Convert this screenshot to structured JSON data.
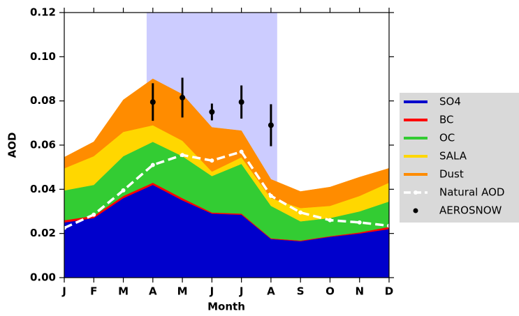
{
  "chart_data": {
    "type": "stacked_area",
    "x_label": "Month",
    "y_label": "AOD",
    "categories": [
      "J",
      "F",
      "M",
      "A",
      "M",
      "J",
      "J",
      "A",
      "S",
      "O",
      "N",
      "D"
    ],
    "ylim": [
      0,
      0.12
    ],
    "yticks": [
      {
        "value": 0,
        "label": "0.00"
      },
      {
        "value": 0.02,
        "label": "0.02"
      },
      {
        "value": 0.04,
        "label": "0.04"
      },
      {
        "value": 0.06,
        "label": "0.06"
      },
      {
        "value": 0.08,
        "label": "0.08"
      },
      {
        "value": 0.1,
        "label": "0.10"
      },
      {
        "value": 0.12,
        "label": "0.12"
      }
    ],
    "shaded_span": [
      2.79,
      7.21
    ],
    "shaded_color": "#ccccff",
    "series": [
      {
        "name": "SO4",
        "color": "#0000cc",
        "values": [
          0.025,
          0.027,
          0.036,
          0.042,
          0.035,
          0.029,
          0.0285,
          0.0175,
          0.0165,
          0.0185,
          0.02,
          0.022
        ]
      },
      {
        "name": "BC",
        "color": "#ff0000",
        "values": [
          0.001,
          0.001,
          0.001,
          0.001,
          0.001,
          0.0005,
          0.0005,
          0.0003,
          0.0003,
          0.0003,
          0.0005,
          0.001
        ]
      },
      {
        "name": "OC",
        "color": "#33cc33",
        "values": [
          0.0135,
          0.014,
          0.018,
          0.0185,
          0.019,
          0.0165,
          0.0225,
          0.0147,
          0.0087,
          0.0082,
          0.0095,
          0.0115
        ]
      },
      {
        "name": "SALA",
        "color": "#ffd700",
        "values": [
          0.01,
          0.013,
          0.011,
          0.0075,
          0.007,
          0.002,
          0.003,
          0.0035,
          0.006,
          0.0055,
          0.007,
          0.0085
        ]
      },
      {
        "name": "Dust",
        "color": "#ff8c00",
        "values": [
          0.005,
          0.0065,
          0.0145,
          0.021,
          0.021,
          0.02,
          0.012,
          0.0085,
          0.0075,
          0.0085,
          0.0085,
          0.0065
        ]
      }
    ],
    "line": {
      "name": "Natural AOD",
      "color": "#ffffff",
      "values": [
        0.0225,
        0.0285,
        0.0395,
        0.051,
        0.0555,
        0.053,
        0.057,
        0.037,
        0.0295,
        0.026,
        0.025,
        0.0235
      ]
    },
    "points": {
      "name": "AEROSNOW",
      "color": "#000000",
      "values": [
        null,
        null,
        null,
        0.0795,
        0.0815,
        0.075,
        0.0795,
        0.069,
        null,
        null,
        null,
        null
      ],
      "errors": [
        null,
        null,
        null,
        0.0085,
        0.009,
        0.0038,
        0.0075,
        0.0095,
        null,
        null,
        null,
        null
      ]
    }
  }
}
